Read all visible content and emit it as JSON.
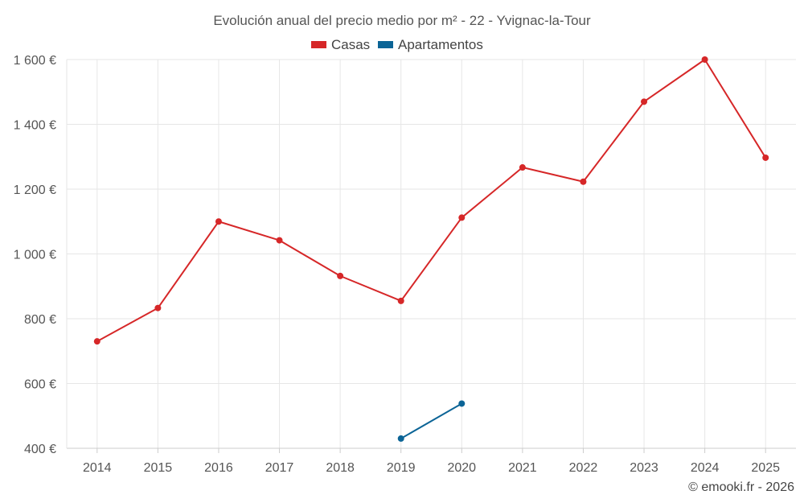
{
  "chart_data": {
    "type": "line",
    "title": "Evolución anual del precio medio por m² - 22 - Yvignac-la-Tour",
    "categories": [
      "2014",
      "2015",
      "2016",
      "2017",
      "2018",
      "2019",
      "2020",
      "2021",
      "2022",
      "2023",
      "2024",
      "2025"
    ],
    "series": [
      {
        "name": "Casas",
        "color": "#d62728",
        "values": [
          730,
          833,
          1100,
          1042,
          932,
          855,
          1112,
          1267,
          1223,
          1470,
          1600,
          1297
        ]
      },
      {
        "name": "Apartamentos",
        "color": "#0b6496",
        "values": [
          null,
          null,
          null,
          null,
          null,
          430,
          538,
          null,
          null,
          null,
          null,
          null
        ]
      }
    ],
    "ylim": [
      400,
      1600
    ],
    "yticks": [
      400,
      600,
      800,
      1000,
      1200,
      1400,
      1600
    ],
    "ytick_labels": [
      "400 €",
      "600 €",
      "800 €",
      "1 000 €",
      "1 200 €",
      "1 400 €",
      "1 600 €"
    ],
    "legend_position": "top-center",
    "grid": true
  },
  "credit": "© emooki.fr - 2026"
}
